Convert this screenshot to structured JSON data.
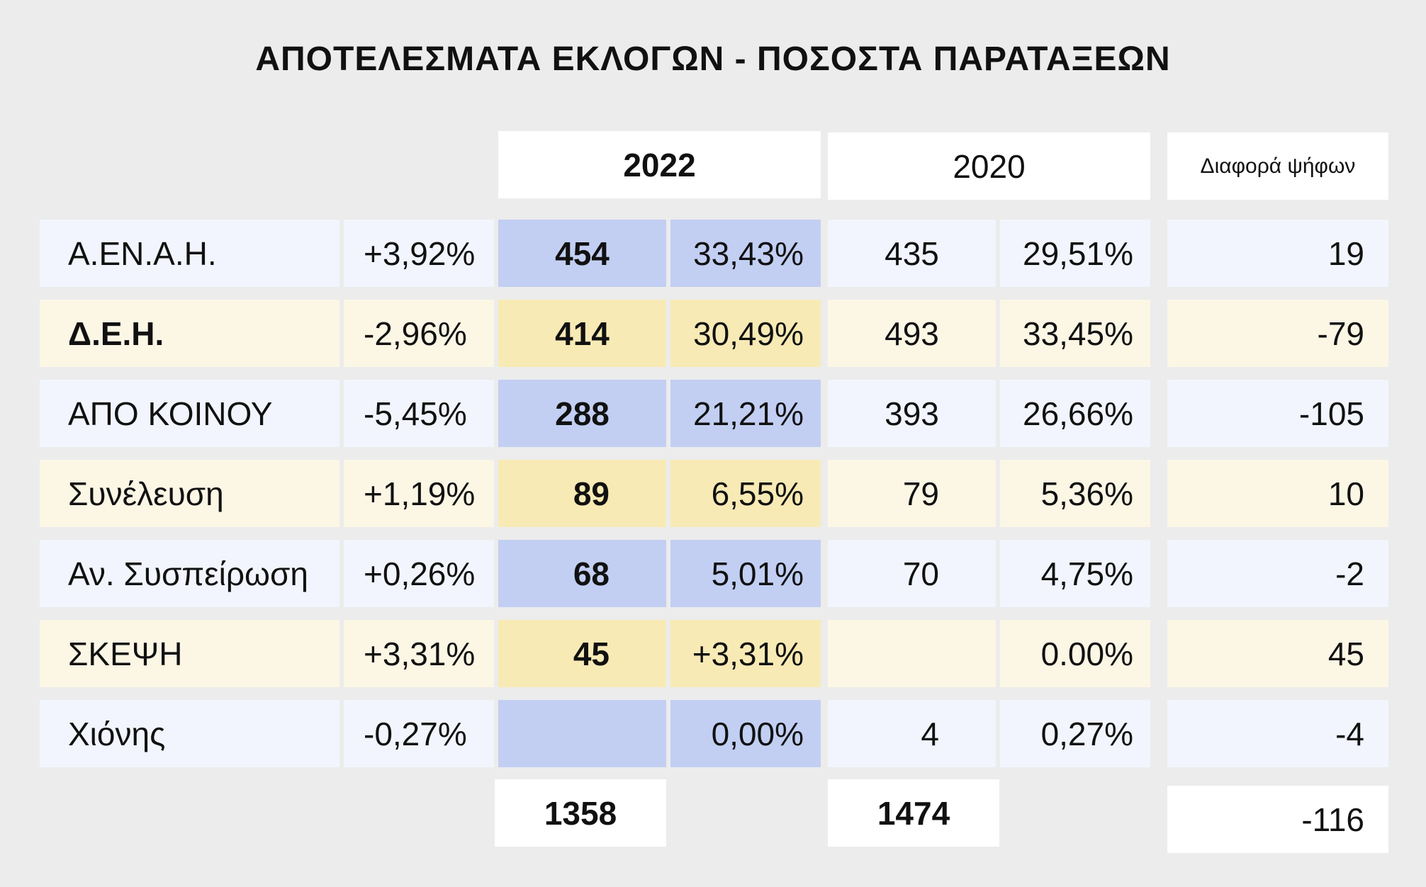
{
  "title": "ΑΠΟΤΕΛΕΣΜΑΤΑ ΕΚΛΟΓΩΝ - ΠΟΣΟΣΤΑ ΠΑΡΑΤΑΞΕΩΝ",
  "headers": {
    "year_2022": "2022",
    "year_2020": "2020",
    "vote_diff": "Διαφορά ψήφων"
  },
  "rows": [
    {
      "name": "Α.ΕΝ.Α.Η.",
      "change": "+3,92%",
      "votes_2022": "454",
      "pct_2022": "33,43%",
      "votes_2020": "435",
      "pct_2020": "29,51%",
      "diff": "19"
    },
    {
      "name": "Δ.Ε.Η.",
      "change": "-2,96%",
      "votes_2022": "414",
      "pct_2022": "30,49%",
      "votes_2020": "493",
      "pct_2020": "33,45%",
      "diff": "-79"
    },
    {
      "name": "ΑΠΟ ΚΟΙΝΟΥ",
      "change": "-5,45%",
      "votes_2022": "288",
      "pct_2022": "21,21%",
      "votes_2020": "393",
      "pct_2020": "26,66%",
      "diff": "-105"
    },
    {
      "name": "Συνέλευση",
      "change": "+1,19%",
      "votes_2022": "89",
      "pct_2022": "6,55%",
      "votes_2020": "79",
      "pct_2020": "5,36%",
      "diff": "10"
    },
    {
      "name": "Αν. Συσπείρωση",
      "change": "+0,26%",
      "votes_2022": "68",
      "pct_2022": "5,01%",
      "votes_2020": "70",
      "pct_2020": "4,75%",
      "diff": "-2"
    },
    {
      "name": "ΣΚΕΨΗ",
      "change": "+3,31%",
      "votes_2022": "45",
      "pct_2022": "+3,31%",
      "votes_2020": "",
      "pct_2020": "0.00%",
      "diff": "45"
    },
    {
      "name": "Χιόνης",
      "change": "-0,27%",
      "votes_2022": "",
      "pct_2022": "0,00%",
      "votes_2020": "4",
      "pct_2020": "0,27%",
      "diff": "-4"
    }
  ],
  "totals": {
    "votes_2022": "1358",
    "votes_2020": "1474",
    "diff": "-116"
  },
  "colors": {
    "background": "#ececec",
    "blue_row": "#f2f5fd",
    "blue_highlight": "#c2cff3",
    "yellow_row": "#fcf6e5",
    "yellow_highlight": "#f8eab5"
  }
}
